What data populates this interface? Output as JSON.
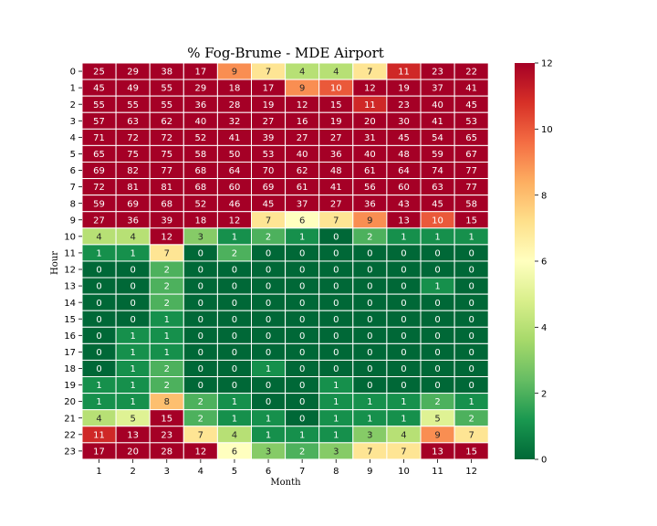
{
  "chart_data": {
    "type": "heatmap",
    "title": "% Fog-Brume - MDE Airport",
    "xlabel": "Month",
    "ylabel": "Hour",
    "x_categories": [
      "1",
      "2",
      "3",
      "4",
      "5",
      "6",
      "7",
      "8",
      "9",
      "10",
      "11",
      "12"
    ],
    "y_categories": [
      "0",
      "1",
      "2",
      "3",
      "4",
      "5",
      "6",
      "7",
      "8",
      "9",
      "10",
      "11",
      "12",
      "13",
      "14",
      "15",
      "16",
      "17",
      "18",
      "19",
      "20",
      "21",
      "22",
      "23"
    ],
    "color_range": [
      0,
      12
    ],
    "colorbar_ticks": [
      "0",
      "2",
      "4",
      "6",
      "8",
      "10",
      "12"
    ],
    "colormap": "RdYlGn_r",
    "values": [
      [
        25,
        29,
        38,
        17,
        9,
        7,
        4,
        4,
        7,
        11,
        23,
        22
      ],
      [
        45,
        49,
        55,
        29,
        18,
        17,
        9,
        10,
        12,
        19,
        37,
        41
      ],
      [
        55,
        55,
        55,
        36,
        28,
        19,
        12,
        15,
        11,
        23,
        40,
        45
      ],
      [
        57,
        63,
        62,
        40,
        32,
        27,
        16,
        19,
        20,
        30,
        41,
        53
      ],
      [
        71,
        72,
        72,
        52,
        41,
        39,
        27,
        27,
        31,
        45,
        54,
        65
      ],
      [
        65,
        75,
        75,
        58,
        50,
        53,
        40,
        36,
        40,
        48,
        59,
        67
      ],
      [
        69,
        82,
        77,
        68,
        64,
        70,
        62,
        48,
        61,
        64,
        74,
        77
      ],
      [
        72,
        81,
        81,
        68,
        60,
        69,
        61,
        41,
        56,
        60,
        63,
        77
      ],
      [
        59,
        69,
        68,
        52,
        46,
        45,
        37,
        27,
        36,
        43,
        45,
        58
      ],
      [
        27,
        36,
        39,
        18,
        12,
        7,
        6,
        7,
        9,
        13,
        10,
        15
      ],
      [
        4,
        4,
        12,
        3,
        1,
        2,
        1,
        0,
        2,
        1,
        1,
        1
      ],
      [
        1,
        1,
        7,
        0,
        2,
        0,
        0,
        0,
        0,
        0,
        0,
        0
      ],
      [
        0,
        0,
        2,
        0,
        0,
        0,
        0,
        0,
        0,
        0,
        0,
        0
      ],
      [
        0,
        0,
        2,
        0,
        0,
        0,
        0,
        0,
        0,
        0,
        1,
        0
      ],
      [
        0,
        0,
        2,
        0,
        0,
        0,
        0,
        0,
        0,
        0,
        0,
        0
      ],
      [
        0,
        0,
        1,
        0,
        0,
        0,
        0,
        0,
        0,
        0,
        0,
        0
      ],
      [
        0,
        1,
        1,
        0,
        0,
        0,
        0,
        0,
        0,
        0,
        0,
        0
      ],
      [
        0,
        1,
        1,
        0,
        0,
        0,
        0,
        0,
        0,
        0,
        0,
        0
      ],
      [
        0,
        1,
        2,
        0,
        0,
        1,
        0,
        0,
        0,
        0,
        0,
        0
      ],
      [
        1,
        1,
        2,
        0,
        0,
        0,
        0,
        1,
        0,
        0,
        0,
        0
      ],
      [
        1,
        1,
        8,
        2,
        1,
        0,
        0,
        1,
        1,
        1,
        2,
        1
      ],
      [
        4,
        5,
        15,
        2,
        1,
        1,
        0,
        1,
        1,
        1,
        5,
        2
      ],
      [
        11,
        13,
        23,
        7,
        4,
        1,
        1,
        1,
        3,
        4,
        9,
        7
      ],
      [
        17,
        20,
        28,
        12,
        6,
        3,
        2,
        3,
        7,
        7,
        13,
        15
      ]
    ]
  }
}
